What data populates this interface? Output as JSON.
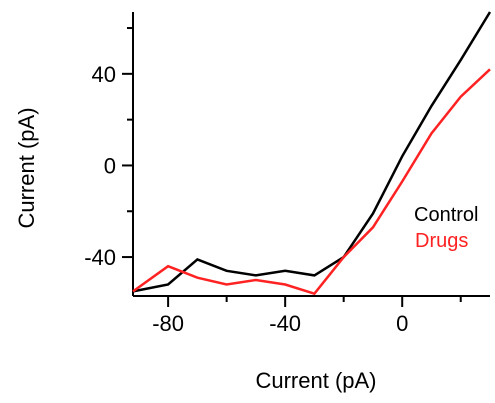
{
  "chart_data": {
    "type": "line",
    "xlabel": "Current (pA)",
    "ylabel": "Current (pA)",
    "xlim": [
      -92,
      30
    ],
    "ylim": [
      -57,
      67
    ],
    "x_major_ticks": [
      -80,
      -40,
      0
    ],
    "x_tick_labels": [
      "-80",
      "-40",
      "0"
    ],
    "x_minor_ticks": [
      -60,
      -20,
      20
    ],
    "y_major_ticks": [
      -40,
      0,
      40
    ],
    "y_tick_labels": [
      "-40",
      "0",
      "40"
    ],
    "y_minor_ticks": [
      -20,
      20,
      60
    ],
    "grid": false,
    "legend_position": "right",
    "series": [
      {
        "name": "Control",
        "color": "#000000",
        "x": [
          -92,
          -80,
          -70,
          -60,
          -50,
          -40,
          -30,
          -20,
          -10,
          0,
          10,
          20,
          30
        ],
        "y": [
          -55,
          -52,
          -41,
          -46,
          -48,
          -46,
          -48,
          -40,
          -21,
          4,
          26,
          46,
          67
        ]
      },
      {
        "name": "Drugs",
        "color": "#ff2222",
        "x": [
          -92,
          -80,
          -70,
          -60,
          -50,
          -40,
          -30,
          -20,
          -10,
          0,
          10,
          20,
          30
        ],
        "y": [
          -55,
          -44,
          -49,
          -52,
          -50,
          -52,
          -56,
          -40,
          -27,
          -7,
          14,
          30,
          42
        ]
      }
    ]
  }
}
